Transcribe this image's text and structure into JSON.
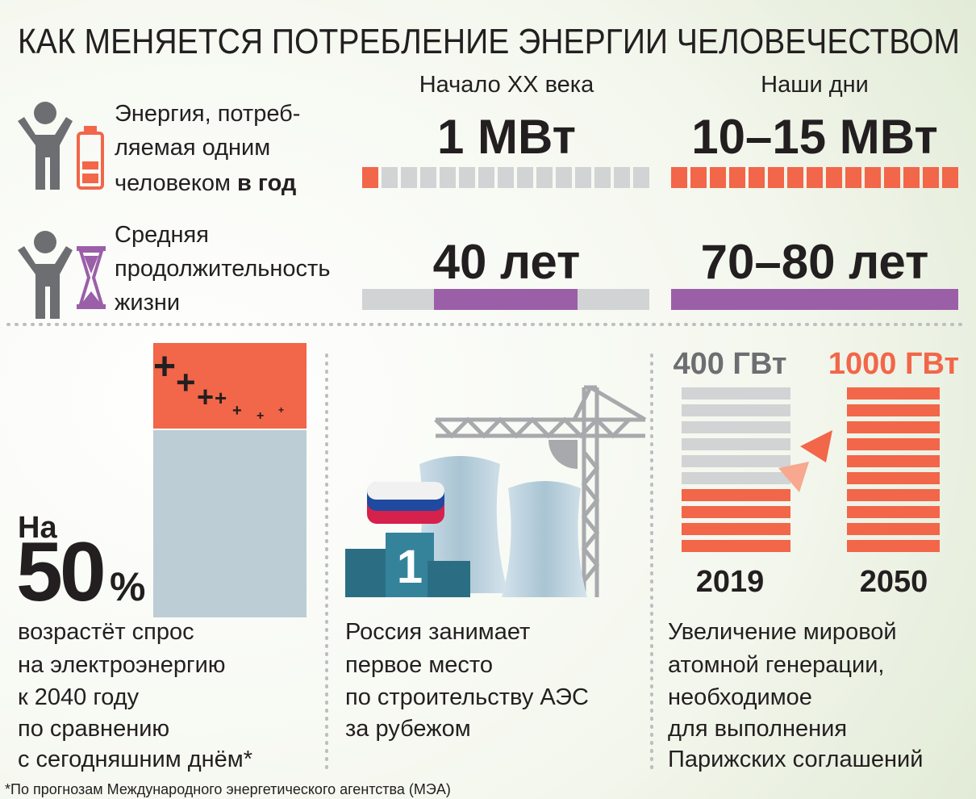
{
  "title": "КАК МЕНЯЕТСЯ ПОТРЕБЛЕНИЕ ЭНЕРГИИ ЧЕЛОВЕЧЕСТВОМ",
  "columns": [
    "Начало XX века",
    "Наши дни"
  ],
  "rows": [
    {
      "label_lines": [
        "Энергия, потреб-",
        "ляемая одним",
        "человеком "
      ],
      "label_bold": "в год",
      "values": [
        "1 МВт",
        "10–15 МВт"
      ]
    },
    {
      "label_lines": [
        "Средняя",
        "продолжительность",
        "жизни"
      ],
      "values": [
        "40 лет",
        "70–80 лет"
      ]
    }
  ],
  "panel_demand": {
    "prefix": "На",
    "number": "50",
    "unit": "%",
    "lines": [
      "возрастёт спрос",
      "на электроэнергию",
      "к 2040 году",
      "по сравнению",
      "с сегодняшним днём*"
    ]
  },
  "panel_russia": {
    "rank": "1",
    "lines": [
      "Россия занимает",
      "первое место",
      "по строительству АЭС",
      "за рубежом"
    ]
  },
  "panel_nuclear": {
    "left_value": "400 ГВт",
    "right_value": "1000 ГВт",
    "left_year": "2019",
    "right_year": "2050",
    "lines": [
      "Увеличение мировой",
      "атомной генерации,",
      "необходимое",
      "для выполнения",
      "Парижских соглашений"
    ]
  },
  "footnote": "*По прогнозам Международного энергетического агентства (МЭА)"
}
